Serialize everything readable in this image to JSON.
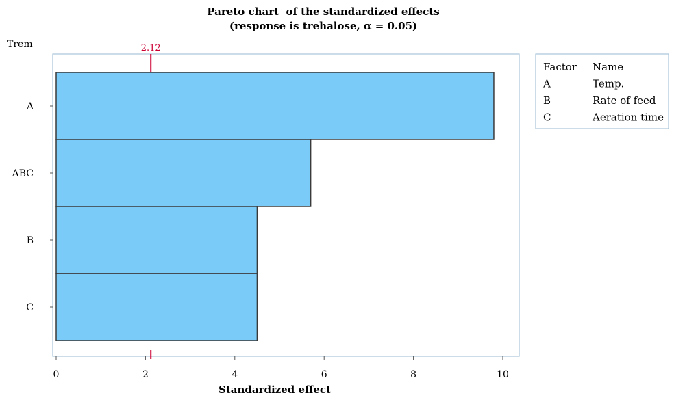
{
  "chart_data": {
    "type": "bar",
    "orientation": "horizontal",
    "title": "Pareto chart  of the standardized effects",
    "subtitle": "(response is trehalose, α = 0.05)",
    "ylabel": "Trem",
    "xlabel": "Standardized effect",
    "categories": [
      "A",
      "ABC",
      "B",
      "C"
    ],
    "values": [
      9.8,
      5.7,
      4.5,
      4.5
    ],
    "xlim": [
      0,
      10.4
    ],
    "xticks": [
      "0",
      "2",
      "4",
      "6",
      "8",
      "10"
    ],
    "reference_line": {
      "value": 2.12,
      "label": "2.12",
      "color": "#cc0033"
    },
    "bar_color": "#7bcbf8",
    "bar_edge_color": "#3a3a3a",
    "frame_color": "#a9c4d8",
    "grid": false,
    "legend": {
      "placement": "right",
      "headers": [
        "Factor",
        "Name"
      ],
      "rows": [
        [
          "A",
          "Temp."
        ],
        [
          "B",
          "Rate of feed"
        ],
        [
          "C",
          "Aeration time"
        ]
      ]
    }
  }
}
